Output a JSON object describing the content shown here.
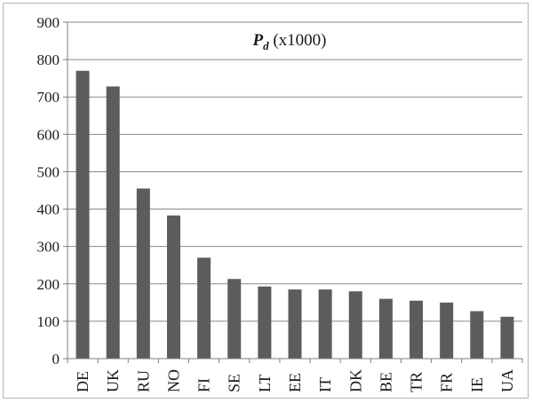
{
  "chart_data": {
    "type": "bar",
    "title_symbol": "P",
    "title_subscript": "d",
    "title_suffix": " (x1000)",
    "categories": [
      "DE",
      "UK",
      "RU",
      "NO",
      "FI",
      "SE",
      "LT",
      "EE",
      "IT",
      "DK",
      "BE",
      "TR",
      "FR",
      "IE",
      "UA"
    ],
    "values": [
      770,
      728,
      455,
      383,
      270,
      213,
      193,
      185,
      185,
      180,
      160,
      155,
      150,
      127,
      112
    ],
    "ylim": [
      0,
      900
    ],
    "yticks": [
      0,
      100,
      200,
      300,
      400,
      500,
      600,
      700,
      800,
      900
    ],
    "xlabel": "",
    "ylabel": "",
    "grid": true,
    "legend": "none",
    "bar_color": "#5c5c5c",
    "grid_color": "#8a8a8a",
    "axis_color": "#7f7f7f"
  }
}
